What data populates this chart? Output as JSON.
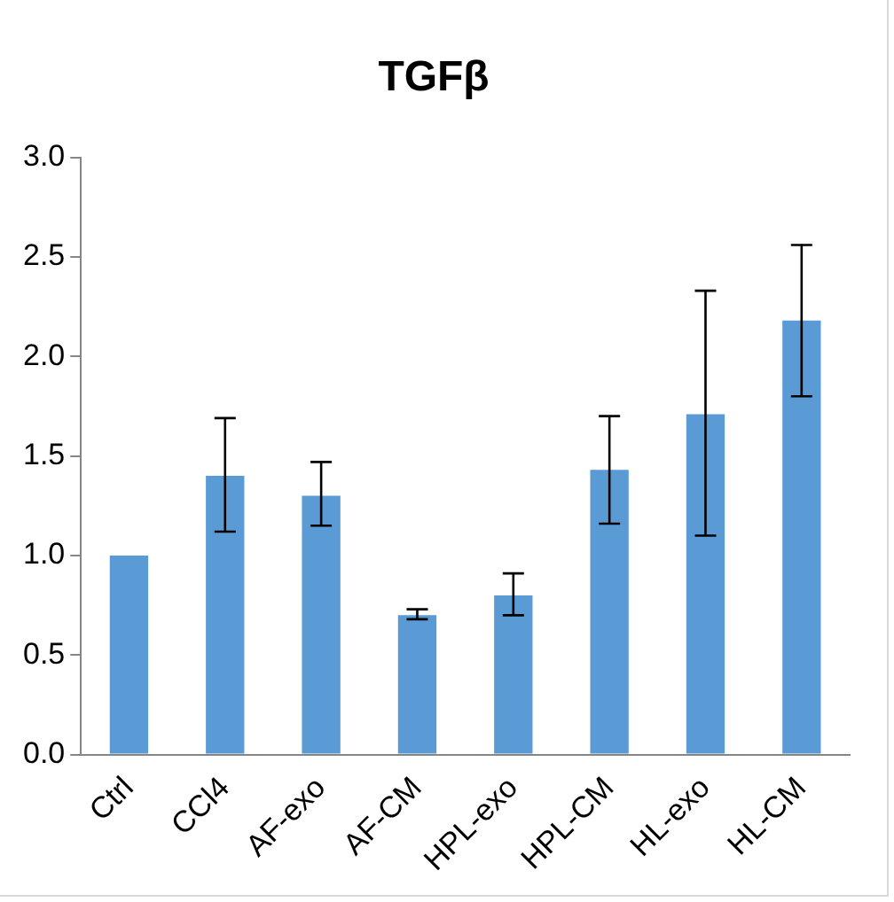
{
  "chart_data": {
    "type": "bar",
    "title": "TGFβ",
    "categories": [
      "Ctrl",
      "CCl4",
      "AF-exo",
      "AF-CM",
      "HPL-exo",
      "HPL-CM",
      "HL-exo",
      "HL-CM"
    ],
    "values": [
      1.0,
      1.4,
      1.3,
      0.7,
      0.8,
      1.43,
      1.71,
      2.18
    ],
    "errors": [
      null,
      [
        1.12,
        1.69
      ],
      [
        1.15,
        1.47
      ],
      [
        0.68,
        0.73
      ],
      [
        0.7,
        0.91
      ],
      [
        1.16,
        1.7
      ],
      [
        1.1,
        2.33
      ],
      [
        1.8,
        2.56
      ]
    ],
    "color": "#5b9bd5",
    "ylim": [
      0,
      3
    ],
    "yticks": [
      {
        "value": 0,
        "label": "0.0"
      },
      {
        "value": 0.5,
        "label": "0.5"
      },
      {
        "value": 1,
        "label": "1.0"
      },
      {
        "value": 1.5,
        "label": "1.5"
      },
      {
        "value": 2,
        "label": "2.0"
      },
      {
        "value": 2.5,
        "label": "2.5"
      },
      {
        "value": 3,
        "label": "3.0"
      }
    ],
    "grid": false,
    "legend": false
  }
}
